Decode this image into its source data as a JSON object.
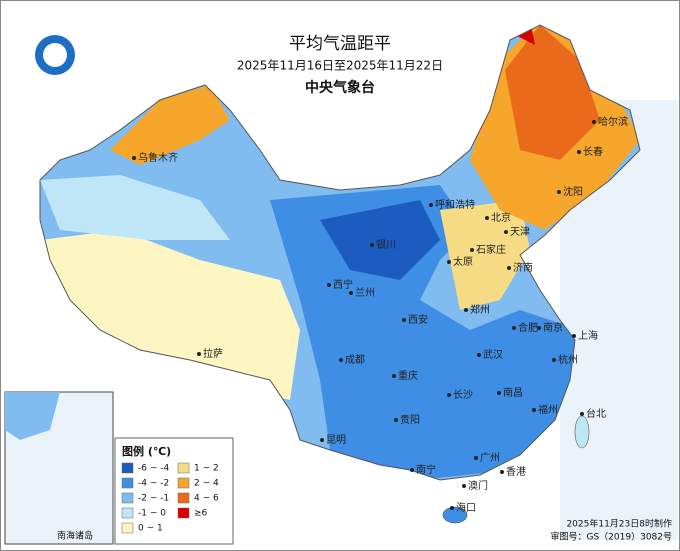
{
  "header": {
    "title": "平均气温距平",
    "subtitle": "2025年11月16日至2025年11月22日",
    "agency": "中央气象台"
  },
  "legend": {
    "title": "图例 (℃)",
    "items": [
      {
        "label": "-6 ~ -4",
        "color": "#1c5cc0"
      },
      {
        "label": "-4 ~ -2",
        "color": "#3e8ee6"
      },
      {
        "label": "-2 ~ -1",
        "color": "#80bcf0"
      },
      {
        "label": "-1 ~ 0",
        "color": "#bfe6f7"
      },
      {
        "label": "0 ~ 1",
        "color": "#fdf6c3"
      },
      {
        "label": "1 ~ 2",
        "color": "#f7dc86"
      },
      {
        "label": "2 ~ 4",
        "color": "#f5a62b"
      },
      {
        "label": "4 ~ 6",
        "color": "#ea6a1c"
      },
      {
        "label": "≥6",
        "color": "#d60000"
      }
    ]
  },
  "cities": [
    "乌鲁木齐",
    "哈尔滨",
    "长春",
    "沈阳",
    "呼和浩特",
    "北京",
    "天津",
    "石家庄",
    "济南",
    "太原",
    "银川",
    "西宁",
    "兰州",
    "郑州",
    "西安",
    "合肥",
    "南京",
    "上海",
    "杭州",
    "武汉",
    "成都",
    "重庆",
    "拉萨",
    "长沙",
    "南昌",
    "福州",
    "台北",
    "贵阳",
    "昆明",
    "南宁",
    "广州",
    "香港",
    "澳门",
    "海口"
  ],
  "inset": {
    "label": "南海诸岛"
  },
  "footer": {
    "made": "2025年11月23日8时制作",
    "approval": "审图号：GS（2019）3082号"
  }
}
